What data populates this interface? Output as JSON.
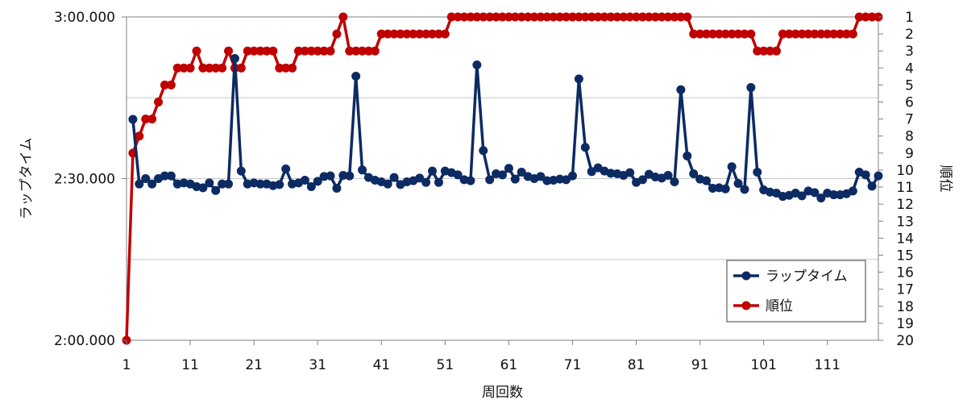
{
  "chart_data": {
    "type": "line",
    "xlabel": "周回数",
    "ylabel": "ラップタイム",
    "y2label": "順位",
    "xlim": [
      1,
      119
    ],
    "x_ticks": [
      1,
      11,
      21,
      31,
      41,
      51,
      61,
      71,
      81,
      91,
      101,
      111
    ],
    "ylim_seconds": [
      120,
      180
    ],
    "y_ticks": [
      {
        "value": 180,
        "label": "3:00.000"
      },
      {
        "value": 150,
        "label": "2:30.000"
      },
      {
        "value": 120,
        "label": "2:00.000"
      }
    ],
    "y2lim": [
      1,
      20
    ],
    "y2_ticks": [
      1,
      2,
      3,
      4,
      5,
      6,
      7,
      8,
      9,
      10,
      11,
      12,
      13,
      14,
      15,
      16,
      17,
      18,
      19,
      20
    ],
    "grid": "horizontal",
    "legend_position": "bottom-right",
    "series": [
      {
        "name": "ラップタイム",
        "axis": "left",
        "color": "#0d2b63",
        "values": [
          null,
          161,
          149,
          150,
          149,
          150,
          150.5,
          150.5,
          149,
          149.2,
          149,
          148.5,
          148.3,
          149.2,
          147.8,
          149,
          149,
          172.3,
          151.4,
          149,
          149.2,
          149,
          149,
          148.7,
          148.9,
          151.8,
          149,
          149.2,
          149.7,
          148.5,
          149.5,
          150.4,
          150.5,
          148.2,
          150.6,
          150.5,
          169,
          151.6,
          150.2,
          149.7,
          149.4,
          149.0,
          150.2,
          148.9,
          149.4,
          149.6,
          150.1,
          149.3,
          151.4,
          149.3,
          151.4,
          151.1,
          150.7,
          149.8,
          149.6,
          171.1,
          155.2,
          149.8,
          150.9,
          150.7,
          151.9,
          149.9,
          151.2,
          150.4,
          150.0,
          150.4,
          149.6,
          149.7,
          149.9,
          149.8,
          150.5,
          168.5,
          155.8,
          151.3,
          152.0,
          151.4,
          151.0,
          150.9,
          150.6,
          151.1,
          149.3,
          149.8,
          150.8,
          150.3,
          150.1,
          150.6,
          149.4,
          166.5,
          154.2,
          150.9,
          149.9,
          149.6,
          148.2,
          148.3,
          148.1,
          152.2,
          149.1,
          148.0,
          166.9,
          151.2,
          147.9,
          147.5,
          147.3,
          146.7,
          146.9,
          147.3,
          146.8,
          147.7,
          147.4,
          146.4,
          147.3,
          147.0,
          147.0,
          147.2,
          147.7,
          151.2,
          150.7,
          148.6,
          150.5
        ]
      },
      {
        "name": "順位",
        "axis": "right",
        "color": "#c00000",
        "values": [
          20,
          9,
          8,
          7,
          7,
          6,
          5,
          5,
          4,
          4,
          4,
          3,
          4,
          4,
          4,
          4,
          3,
          4,
          4,
          3,
          3,
          3,
          3,
          3,
          4,
          4,
          4,
          3,
          3,
          3,
          3,
          3,
          3,
          2,
          1,
          3,
          3,
          3,
          3,
          3,
          2,
          2,
          2,
          2,
          2,
          2,
          2,
          2,
          2,
          2,
          2,
          1,
          1,
          1,
          1,
          1,
          1,
          1,
          1,
          1,
          1,
          1,
          1,
          1,
          1,
          1,
          1,
          1,
          1,
          1,
          1,
          1,
          1,
          1,
          1,
          1,
          1,
          1,
          1,
          1,
          1,
          1,
          1,
          1,
          1,
          1,
          1,
          1,
          1,
          2,
          2,
          2,
          2,
          2,
          2,
          2,
          2,
          2,
          2,
          3,
          3,
          3,
          3,
          2,
          2,
          2,
          2,
          2,
          2,
          2,
          2,
          2,
          2,
          2,
          2,
          1,
          1,
          1,
          1
        ]
      }
    ]
  }
}
